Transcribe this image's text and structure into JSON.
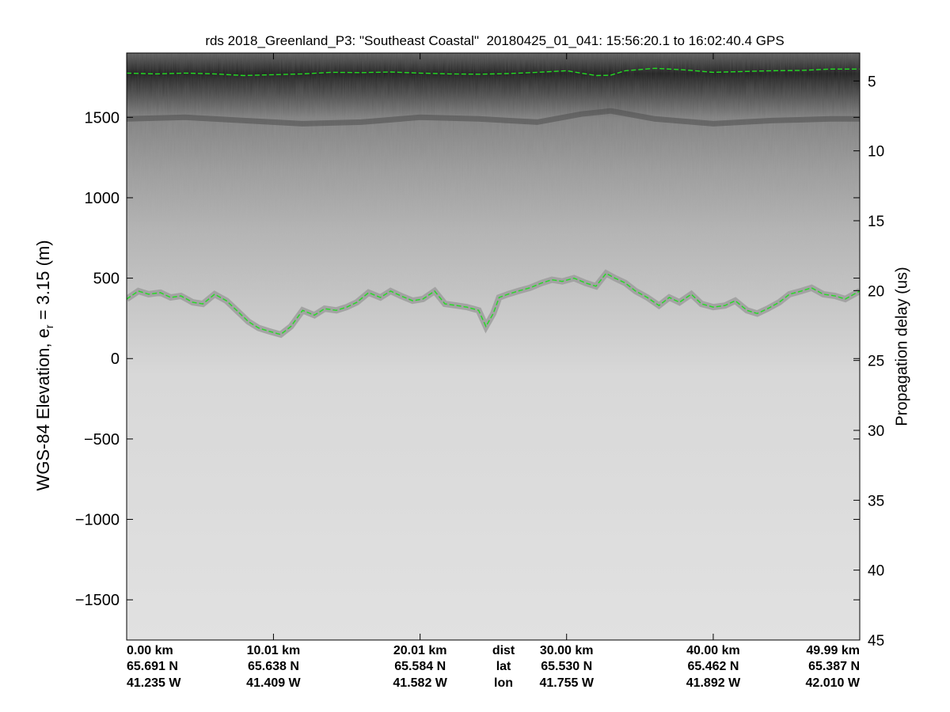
{
  "chart_data": {
    "type": "radar-echogram",
    "title": "rds 2018_Greenland_P3: \"Southeast Coastal\"  20180425_01_041: 15:56:20.1 to 16:02:40.4 GPS",
    "ylabel_left_prefix": "WGS-84 Elevation, e",
    "ylabel_left_sub": "r",
    "ylabel_left_suffix": " = 3.15 (m)",
    "ylabel_right": "Propagation delay (us)",
    "left_ylim": [
      -1750,
      1900
    ],
    "left_yticks": [
      1500,
      1000,
      500,
      0,
      -500,
      -1000,
      -1500
    ],
    "left_yticklabels": [
      "1500",
      "1000",
      "500",
      "0",
      "−500",
      "−1000",
      "−1500"
    ],
    "right_delay_range": [
      3,
      45
    ],
    "right_yticks": [
      5,
      10,
      15,
      20,
      25,
      30,
      35,
      40,
      45
    ],
    "right_yticklabels": [
      "5",
      "10",
      "15",
      "20",
      "25",
      "30",
      "35",
      "40",
      "45"
    ],
    "distance_range_km": [
      0,
      49.99
    ],
    "bottom_labels": [
      {
        "dist": "0.00 km",
        "lat": "65.691 N",
        "lon": "41.235 W",
        "km": 0.0
      },
      {
        "dist": "10.01 km",
        "lat": "65.638 N",
        "lon": "41.409 W",
        "km": 10.01
      },
      {
        "dist": "20.01 km",
        "lat": "65.584 N",
        "lon": "41.582 W",
        "km": 20.01
      },
      {
        "dist": "30.00 km",
        "lat": "65.530 N",
        "lon": "41.755 W",
        "km": 30.0
      },
      {
        "dist": "40.00 km",
        "lat": "65.462 N",
        "lon": "41.892 W",
        "km": 40.0
      },
      {
        "dist": "49.99 km",
        "lat": "65.387 N",
        "lon": "42.010 W",
        "km": 49.99
      }
    ],
    "row_labels": {
      "dist": "dist",
      "lat": "lat",
      "lon": "lon",
      "km": 25.7
    },
    "series": [
      {
        "kind": "surface",
        "color": "#22dd22",
        "x": [
          0,
          2,
          4,
          6,
          8,
          10,
          12,
          14,
          16,
          18,
          20,
          22,
          24,
          26,
          28,
          30,
          32,
          33,
          34,
          36,
          38,
          40,
          42,
          44,
          46,
          48,
          49.99
        ],
        "y": [
          1775,
          1770,
          1775,
          1770,
          1760,
          1765,
          1770,
          1780,
          1778,
          1782,
          1775,
          1770,
          1768,
          1772,
          1780,
          1790,
          1760,
          1762,
          1790,
          1805,
          1795,
          1780,
          1785,
          1790,
          1792,
          1800,
          1800
        ]
      },
      {
        "kind": "bed",
        "color": "#22dd22",
        "x": [
          0,
          0.8,
          1.5,
          2.3,
          3,
          3.7,
          4.5,
          5.2,
          6,
          6.8,
          7.5,
          8.3,
          9,
          9.7,
          10.5,
          11.2,
          12,
          12.8,
          13.5,
          14.3,
          15,
          15.7,
          16.5,
          17.3,
          18,
          18.7,
          19.5,
          20.2,
          21,
          21.7,
          22.5,
          23.2,
          24,
          24.5,
          25,
          25.4,
          26,
          26.7,
          27.5,
          28.3,
          29,
          29.7,
          30.5,
          31.3,
          32,
          32.7,
          33.3,
          34,
          34.7,
          35.5,
          36.3,
          37,
          37.7,
          38.5,
          39.2,
          40,
          40.8,
          41.5,
          42.3,
          43,
          43.7,
          44.5,
          45.2,
          46,
          46.7,
          47.5,
          48.3,
          49,
          49.99
        ],
        "y": [
          370,
          420,
          400,
          410,
          380,
          390,
          350,
          340,
          400,
          360,
          300,
          230,
          190,
          170,
          150,
          200,
          300,
          270,
          310,
          300,
          320,
          350,
          410,
          380,
          420,
          390,
          360,
          370,
          420,
          340,
          330,
          320,
          300,
          200,
          280,
          380,
          400,
          420,
          440,
          470,
          490,
          480,
          500,
          470,
          450,
          530,
          500,
          470,
          420,
          380,
          330,
          380,
          350,
          400,
          340,
          320,
          330,
          360,
          300,
          280,
          310,
          350,
          400,
          420,
          440,
          400,
          390,
          370,
          420
        ]
      }
    ],
    "echo_layers": [
      {
        "kind": "internal-layer",
        "x": [
          0,
          4,
          8,
          12,
          16,
          20,
          24,
          28,
          31,
          33,
          36,
          40,
          44,
          48,
          49.99
        ],
        "y": [
          1490,
          1500,
          1480,
          1460,
          1470,
          1500,
          1490,
          1470,
          1520,
          1540,
          1490,
          1460,
          1480,
          1490,
          1490
        ]
      }
    ]
  }
}
